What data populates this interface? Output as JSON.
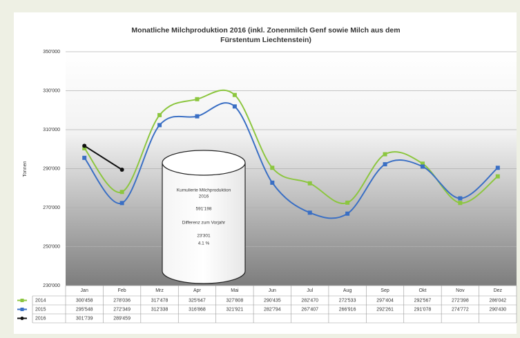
{
  "chart_data": {
    "type": "line",
    "title": [
      "Monatliche Milchproduktion 2016 (inkl. Zonenmilch Genf sowie Milch aus dem",
      "Fürstentum Liechtenstein)"
    ],
    "y_label": "Tonnen",
    "categories": [
      "Jan",
      "Feb",
      "Mrz",
      "Apr",
      "Mai",
      "Jun",
      "Jul",
      "Aug",
      "Sep",
      "Okt",
      "Nov",
      "Dez"
    ],
    "ylim": [
      230000,
      350000
    ],
    "yticks": [
      {
        "value": 230000,
        "label": "230'000"
      },
      {
        "value": 250000,
        "label": "250'000"
      },
      {
        "value": 270000,
        "label": "270'000"
      },
      {
        "value": 290000,
        "label": "290'000"
      },
      {
        "value": 310000,
        "label": "310'000"
      },
      {
        "value": 330000,
        "label": "330'000"
      },
      {
        "value": 350000,
        "label": "350'000"
      }
    ],
    "grid": true,
    "series": [
      {
        "name": "2014",
        "color": "#8cc63f",
        "marker": "square",
        "values": [
          300458,
          278036,
          317478,
          325647,
          327808,
          290435,
          282470,
          272533,
          297404,
          292567,
          272398,
          286042
        ],
        "value_labels": [
          "300'458",
          "278'036",
          "317'478",
          "325'647",
          "327'808",
          "290'435",
          "282'470",
          "272'533",
          "297'404",
          "292'567",
          "272'398",
          "286'042"
        ]
      },
      {
        "name": "2015",
        "color": "#3a6fc4",
        "marker": "square",
        "values": [
          295548,
          272349,
          312338,
          316868,
          321921,
          282794,
          267407,
          266916,
          292261,
          291078,
          274772,
          290430
        ],
        "value_labels": [
          "295'548",
          "272'349",
          "312'338",
          "316'868",
          "321'921",
          "282'794",
          "267'407",
          "266'916",
          "292'261",
          "291'078",
          "274'772",
          "290'430"
        ]
      },
      {
        "name": "2016",
        "color": "#111111",
        "marker": "circle",
        "values": [
          301739,
          289459,
          null,
          null,
          null,
          null,
          null,
          null,
          null,
          null,
          null,
          null
        ],
        "value_labels": [
          "301'739",
          "289'459",
          null,
          null,
          null,
          null,
          null,
          null,
          null,
          null,
          null,
          null
        ]
      }
    ],
    "annotation": [
      "Kumulierte Milchproduktion",
      "2016",
      "591'198",
      "Differenz zum Vorjahr",
      "23'301",
      "4.1 %"
    ]
  }
}
